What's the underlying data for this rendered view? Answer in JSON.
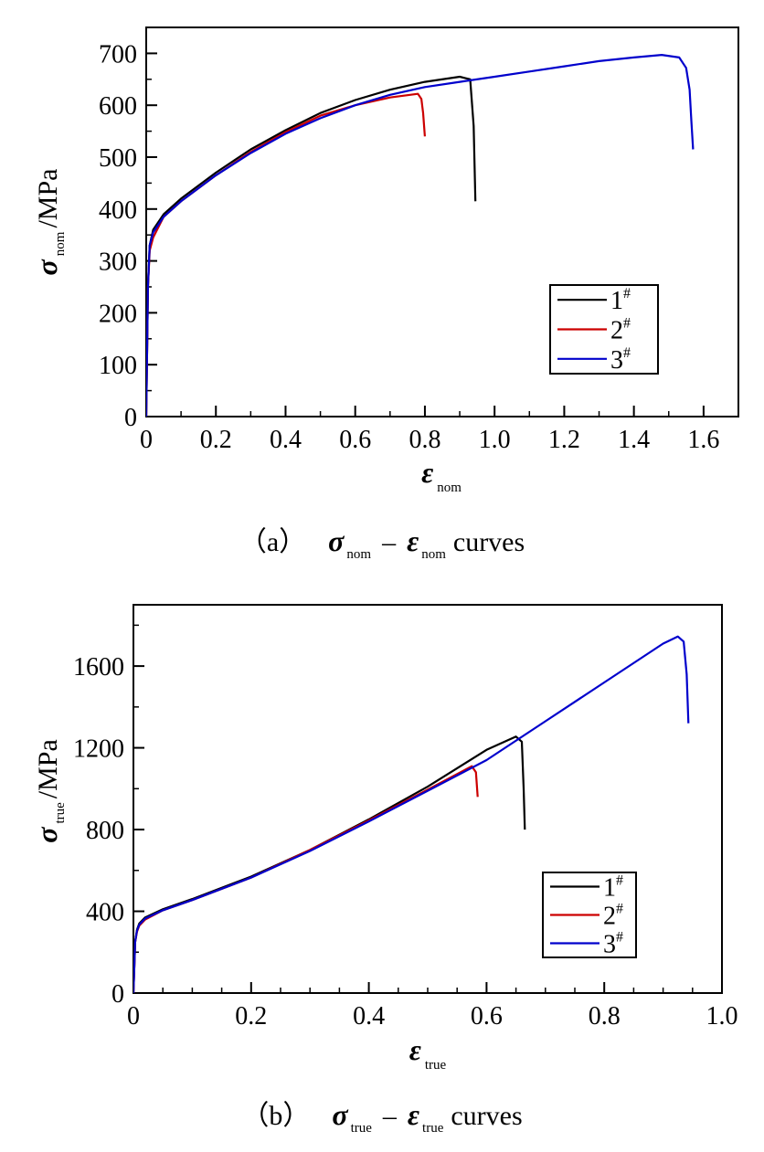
{
  "chart_data": [
    {
      "type": "line",
      "xlim": [
        0,
        1.7
      ],
      "ylim": [
        0,
        750
      ],
      "x_ticks": [
        0,
        0.2,
        0.4,
        0.6,
        0.8,
        1.0,
        1.2,
        1.4,
        1.6
      ],
      "x_tick_labels": [
        "0",
        "0.2",
        "0.4",
        "0.6",
        "0.8",
        "1.0",
        "1.2",
        "1.4",
        "1.6"
      ],
      "y_ticks": [
        0,
        100,
        200,
        300,
        400,
        500,
        600,
        700
      ],
      "y_tick_labels": [
        "0",
        "100",
        "200",
        "300",
        "400",
        "500",
        "600",
        "700"
      ],
      "xlabel": {
        "symbol": "ε",
        "sub": "nom"
      },
      "ylabel": {
        "symbol": "σ",
        "sub": "nom",
        "unit": "/MPa"
      },
      "legend": "bottom-right",
      "caption": {
        "prefix": "（a）",
        "sym1": "σ",
        "sub1": "nom",
        "minus": "–",
        "sym2": "ε",
        "sub2": "nom",
        "suffix": "curves"
      },
      "series": [
        {
          "name": "1",
          "sup": "#",
          "color": "#000000",
          "x": [
            0,
            0.005,
            0.01,
            0.02,
            0.05,
            0.1,
            0.2,
            0.3,
            0.4,
            0.5,
            0.6,
            0.7,
            0.8,
            0.9,
            0.93,
            0.94,
            0.945
          ],
          "y": [
            0,
            250,
            330,
            360,
            390,
            420,
            470,
            515,
            552,
            585,
            610,
            630,
            645,
            655,
            650,
            560,
            415
          ]
        },
        {
          "name": "2",
          "sup": "#",
          "color": "#cc0000",
          "x": [
            0,
            0.005,
            0.01,
            0.02,
            0.05,
            0.1,
            0.2,
            0.3,
            0.4,
            0.5,
            0.6,
            0.7,
            0.78,
            0.79,
            0.795,
            0.8
          ],
          "y": [
            0,
            250,
            320,
            345,
            385,
            415,
            465,
            510,
            548,
            580,
            600,
            615,
            622,
            612,
            585,
            540
          ]
        },
        {
          "name": "3",
          "sup": "#",
          "color": "#0000cc",
          "x": [
            0,
            0.005,
            0.01,
            0.02,
            0.05,
            0.1,
            0.2,
            0.3,
            0.4,
            0.5,
            0.6,
            0.7,
            0.8,
            0.9,
            1.0,
            1.1,
            1.2,
            1.3,
            1.4,
            1.48,
            1.53,
            1.55,
            1.56,
            1.565,
            1.57
          ],
          "y": [
            0,
            250,
            330,
            355,
            385,
            415,
            465,
            508,
            545,
            575,
            600,
            620,
            635,
            645,
            655,
            665,
            675,
            685,
            692,
            697,
            692,
            672,
            630,
            570,
            515
          ]
        }
      ]
    },
    {
      "type": "line",
      "xlim": [
        0,
        1.0
      ],
      "ylim": [
        0,
        1900
      ],
      "x_ticks": [
        0,
        0.2,
        0.4,
        0.6,
        0.8,
        1.0
      ],
      "x_tick_labels": [
        "0",
        "0.2",
        "0.4",
        "0.6",
        "0.8",
        "1.0"
      ],
      "y_ticks": [
        0,
        400,
        800,
        1200,
        1600
      ],
      "y_tick_labels": [
        "0",
        "400",
        "800",
        "1200",
        "1600"
      ],
      "xlabel": {
        "symbol": "ε",
        "sub": "true"
      },
      "ylabel": {
        "symbol": "σ",
        "sub": "true",
        "unit": "/MPa"
      },
      "legend": "bottom-right",
      "caption": {
        "prefix": "（b）",
        "sym1": "σ",
        "sub1": "true",
        "minus": "–",
        "sym2": "ε",
        "sub2": "true",
        "suffix": "curves"
      },
      "series": [
        {
          "name": "1",
          "sup": "#",
          "color": "#000000",
          "x": [
            0,
            0.003,
            0.006,
            0.01,
            0.02,
            0.05,
            0.1,
            0.2,
            0.3,
            0.4,
            0.5,
            0.6,
            0.65,
            0.66,
            0.663,
            0.665
          ],
          "y": [
            0,
            250,
            310,
            340,
            370,
            410,
            460,
            570,
            700,
            850,
            1010,
            1190,
            1255,
            1230,
            1000,
            800
          ]
        },
        {
          "name": "2",
          "sup": "#",
          "color": "#cc0000",
          "x": [
            0,
            0.003,
            0.006,
            0.01,
            0.02,
            0.05,
            0.1,
            0.2,
            0.3,
            0.4,
            0.5,
            0.575,
            0.582,
            0.585
          ],
          "y": [
            0,
            250,
            300,
            330,
            360,
            405,
            455,
            565,
            700,
            845,
            995,
            1110,
            1080,
            960
          ]
        },
        {
          "name": "3",
          "sup": "#",
          "color": "#0000cc",
          "x": [
            0,
            0.003,
            0.006,
            0.01,
            0.02,
            0.05,
            0.1,
            0.2,
            0.3,
            0.4,
            0.5,
            0.6,
            0.7,
            0.8,
            0.9,
            0.925,
            0.935,
            0.94,
            0.943
          ],
          "y": [
            0,
            250,
            305,
            335,
            365,
            405,
            455,
            565,
            695,
            840,
            990,
            1140,
            1330,
            1520,
            1710,
            1745,
            1720,
            1560,
            1320
          ]
        }
      ]
    }
  ]
}
